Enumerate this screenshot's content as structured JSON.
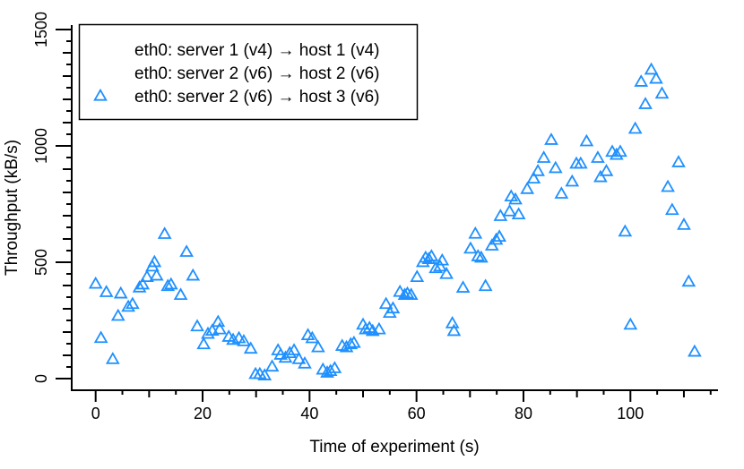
{
  "figure": {
    "background": "#FFFFFF",
    "axis_color": "#000000",
    "point_color": "#1E90FF"
  },
  "chart_data": {
    "type": "scatter",
    "title": "",
    "xlabel": "Time of experiment (s)",
    "ylabel": "Throughput (kB/s)",
    "xlim": [
      -3,
      117
    ],
    "ylim": [
      -30,
      1530
    ],
    "x_major_ticks": [
      0,
      20,
      40,
      60,
      80,
      100
    ],
    "y_major_ticks": [
      0,
      500,
      1000,
      1500
    ],
    "x_minor_step": 5,
    "x_minor_max": 115,
    "y_minor_step": 50,
    "y_minor_max": 1500,
    "grid": "off",
    "legend_position": "top-left",
    "legend": [
      {
        "label": "eth0: server 1 (v4) → host 1 (v4)",
        "marker": "none"
      },
      {
        "label": "eth0: server 2 (v6) → host 2 (v6)",
        "marker": "none"
      },
      {
        "label": "eth0: server 2 (v6) → host 3 (v6)",
        "marker": "triangle-open"
      }
    ],
    "series": [
      {
        "name": "eth0: server 2 (v6) → host 3 (v6)",
        "marker": "triangle-open",
        "color": "#1E90FF",
        "points": [
          [
            0,
            406
          ],
          [
            1,
            173
          ],
          [
            2,
            370
          ],
          [
            3.2,
            82
          ],
          [
            4.2,
            268
          ],
          [
            4.7,
            364
          ],
          [
            6.1,
            307
          ],
          [
            6.9,
            319
          ],
          [
            8.2,
            390
          ],
          [
            8.8,
            403
          ],
          [
            9.6,
            435
          ],
          [
            10.6,
            480
          ],
          [
            11,
            499
          ],
          [
            11.4,
            441
          ],
          [
            12.9,
            620
          ],
          [
            13.5,
            396
          ],
          [
            14.1,
            403
          ],
          [
            15.9,
            358
          ],
          [
            17,
            543
          ],
          [
            18.2,
            441
          ],
          [
            19,
            223
          ],
          [
            20.2,
            146
          ],
          [
            21,
            191
          ],
          [
            21.8,
            204
          ],
          [
            22.9,
            242
          ],
          [
            23.2,
            210
          ],
          [
            24.9,
            178
          ],
          [
            25.7,
            165
          ],
          [
            26.8,
            172
          ],
          [
            27.7,
            159
          ],
          [
            29,
            127
          ],
          [
            29.9,
            18
          ],
          [
            30.7,
            18
          ],
          [
            31.6,
            12
          ],
          [
            33,
            50
          ],
          [
            34.1,
            120
          ],
          [
            34.6,
            101
          ],
          [
            35.5,
            88
          ],
          [
            36.3,
            108
          ],
          [
            37.1,
            120
          ],
          [
            38,
            82
          ],
          [
            39.1,
            63
          ],
          [
            39.7,
            185
          ],
          [
            40.5,
            172
          ],
          [
            41.6,
            133
          ],
          [
            42.5,
            37
          ],
          [
            43.3,
            24
          ],
          [
            43.9,
            31
          ],
          [
            44.7,
            43
          ],
          [
            46.1,
            139
          ],
          [
            46.9,
            133
          ],
          [
            47.7,
            146
          ],
          [
            48.3,
            152
          ],
          [
            50,
            230
          ],
          [
            50.5,
            210
          ],
          [
            51.2,
            216
          ],
          [
            51.8,
            203
          ],
          [
            53,
            210
          ],
          [
            54.3,
            319
          ],
          [
            55,
            281
          ],
          [
            55.6,
            300
          ],
          [
            56.9,
            371
          ],
          [
            57.8,
            358
          ],
          [
            58.3,
            364
          ],
          [
            59,
            358
          ],
          [
            60.1,
            435
          ],
          [
            61.2,
            499
          ],
          [
            61.7,
            518
          ],
          [
            62.3,
            512
          ],
          [
            62.8,
            524
          ],
          [
            63.6,
            473
          ],
          [
            64.4,
            480
          ],
          [
            64.8,
            506
          ],
          [
            65.6,
            448
          ],
          [
            66.7,
            236
          ],
          [
            67,
            203
          ],
          [
            68.7,
            389
          ],
          [
            70.1,
            557
          ],
          [
            71,
            621
          ],
          [
            71.5,
            524
          ],
          [
            72.1,
            518
          ],
          [
            72.9,
            396
          ],
          [
            74.1,
            570
          ],
          [
            74.9,
            595
          ],
          [
            75.5,
            608
          ],
          [
            75.7,
            697
          ],
          [
            77.4,
            717
          ],
          [
            77.7,
            781
          ],
          [
            78.5,
            768
          ],
          [
            79.1,
            704
          ],
          [
            80.7,
            813
          ],
          [
            81.9,
            858
          ],
          [
            82.7,
            890
          ],
          [
            83.8,
            947
          ],
          [
            85.2,
            1024
          ],
          [
            86,
            903
          ],
          [
            87.1,
            793
          ],
          [
            89.1,
            845
          ],
          [
            89.9,
            922
          ],
          [
            90.7,
            922
          ],
          [
            91.8,
            1018
          ],
          [
            93.9,
            947
          ],
          [
            94.4,
            864
          ],
          [
            95.5,
            890
          ],
          [
            96.6,
            973
          ],
          [
            97.4,
            960
          ],
          [
            98.1,
            973
          ],
          [
            99,
            630
          ],
          [
            100,
            230
          ],
          [
            100.9,
            1072
          ],
          [
            102,
            1274
          ],
          [
            102.8,
            1178
          ],
          [
            103.9,
            1326
          ],
          [
            104.8,
            1287
          ],
          [
            105.9,
            1223
          ],
          [
            107,
            822
          ],
          [
            107.8,
            723
          ],
          [
            109,
            928
          ],
          [
            110,
            659
          ],
          [
            110.9,
            415
          ],
          [
            112,
            114
          ]
        ]
      }
    ]
  }
}
